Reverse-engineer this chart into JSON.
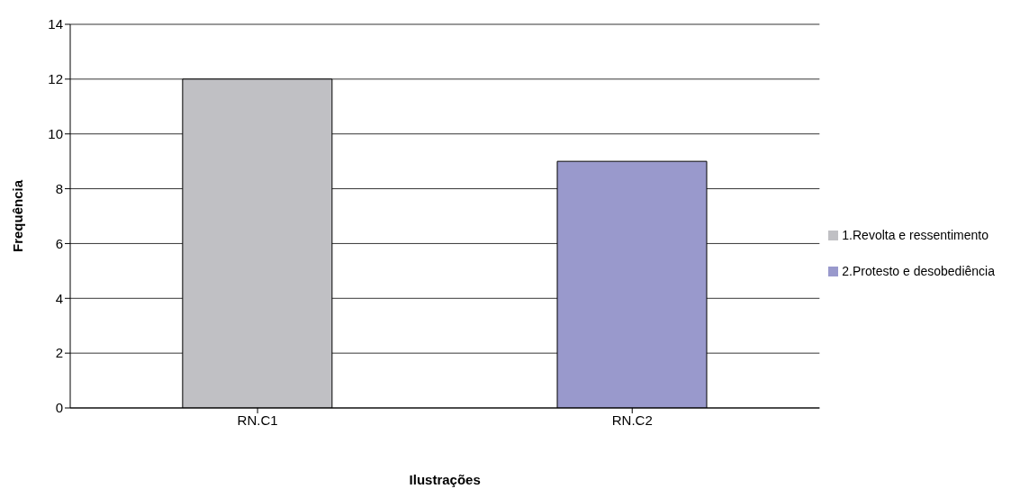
{
  "chart_data": {
    "type": "bar",
    "xlabel": "Ilustrações",
    "ylabel": "Frequência",
    "categories": [
      "RN.C1",
      "RN.C2"
    ],
    "series": [
      {
        "name": "1.Revolta e ressentimento",
        "color": "#c0c0c4",
        "values": [
          12,
          null
        ]
      },
      {
        "name": "2.Protesto e desobediência",
        "color": "#9999cc",
        "values": [
          null,
          9
        ]
      }
    ],
    "stacked": true,
    "ylim": [
      0,
      14
    ],
    "yticks": [
      0,
      2,
      4,
      6,
      8,
      10,
      12,
      14
    ],
    "grid": "y",
    "legend": "right"
  }
}
